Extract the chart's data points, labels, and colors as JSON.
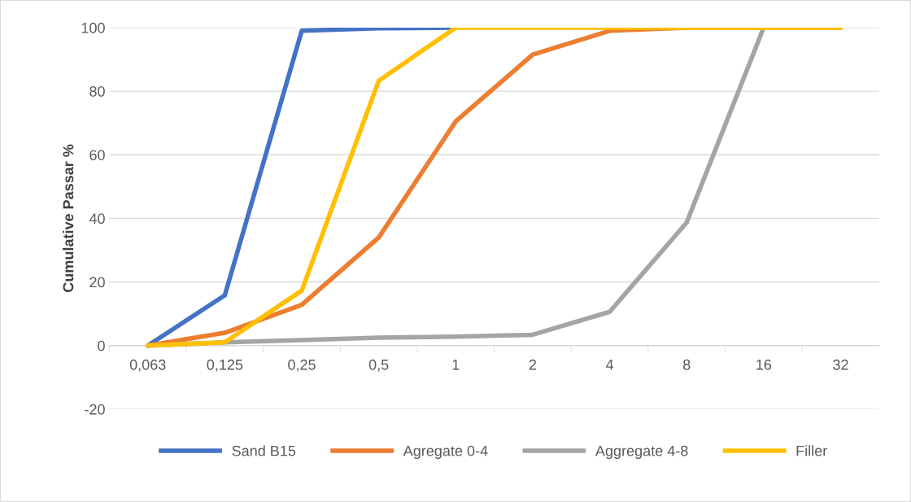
{
  "chart_data": {
    "type": "line",
    "ylabel": "Cumulative Passar %",
    "categories": [
      "0,063",
      "0,125",
      "0,25",
      "0,5",
      "1",
      "2",
      "4",
      "8",
      "16",
      "32"
    ],
    "series": [
      {
        "name": "Sand B15",
        "color": "#4472c4",
        "values": [
          0,
          15.8,
          99,
          99.8,
          100,
          null,
          null,
          null,
          null,
          null
        ]
      },
      {
        "name": "Agregate 0-4",
        "color": "#ed7d31",
        "values": [
          0,
          4,
          12.8,
          34,
          70.5,
          91.5,
          99,
          100,
          100,
          100
        ]
      },
      {
        "name": "Aggregate 4-8",
        "color": "#a5a5a5",
        "values": [
          0,
          1,
          1.7,
          2.5,
          2.8,
          3.4,
          10.6,
          38.7,
          100,
          null
        ]
      },
      {
        "name": "Filler",
        "color": "#ffc000",
        "values": [
          0,
          1,
          17.3,
          83.3,
          100,
          100,
          100,
          100,
          100,
          100
        ]
      }
    ],
    "ylim": [
      -20,
      100
    ],
    "yticks": [
      -20,
      0,
      20,
      40,
      60,
      80,
      100
    ],
    "grid": "y",
    "legend": "bottom",
    "marker": "none",
    "line_style": "solid"
  }
}
